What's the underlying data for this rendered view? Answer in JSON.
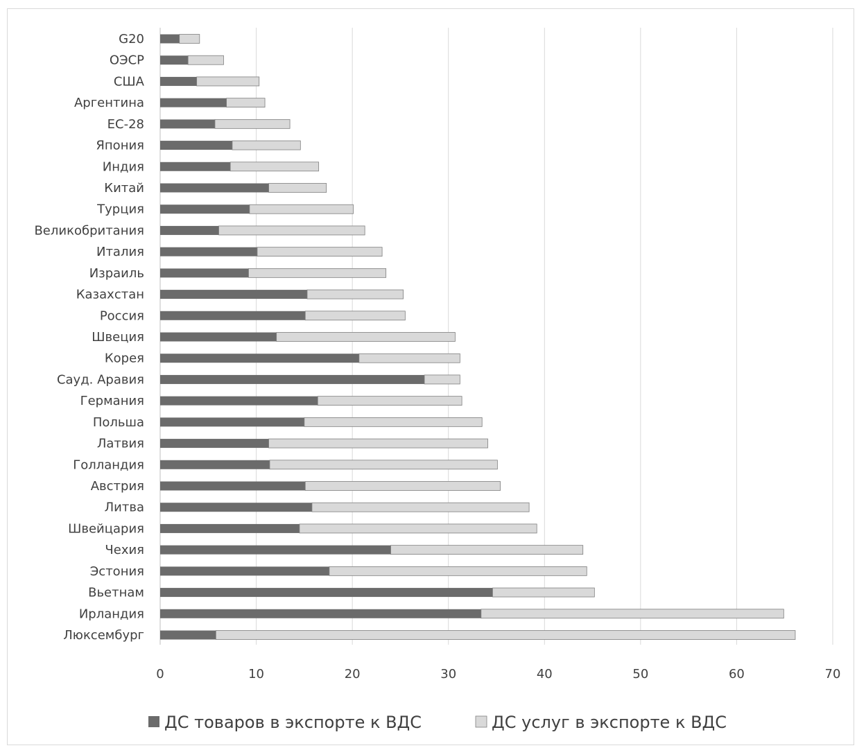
{
  "chart_data": {
    "type": "bar",
    "orientation": "horizontal",
    "stacked": true,
    "categories": [
      "G20",
      "ОЭСР",
      "США",
      "Аргентина",
      "ЕС-28",
      "Япония",
      "Индия",
      "Китай",
      "Турция",
      "Великобритания",
      "Италия",
      "Израиль",
      "Казахстан",
      "Россия",
      "Швеция",
      "Корея",
      "Сауд. Аравия",
      "Германия",
      "Польша",
      "Латвия",
      "Голландия",
      "Австрия",
      "Литва",
      "Швейцария",
      "Чехия",
      "Эстония",
      "Вьетнам",
      "Ирландия",
      "Люксембург"
    ],
    "series": [
      {
        "name": "ДС товаров в экспорте к ВДС",
        "color": "#6b6b6b",
        "values": [
          2.0,
          2.9,
          3.8,
          6.9,
          5.7,
          7.5,
          7.3,
          11.3,
          9.3,
          6.1,
          10.1,
          9.2,
          15.3,
          15.1,
          12.1,
          20.7,
          27.5,
          16.4,
          15.0,
          11.3,
          11.4,
          15.1,
          15.8,
          14.5,
          24.0,
          17.6,
          34.6,
          33.4,
          5.8
        ]
      },
      {
        "name": "ДС услуг в экспорте к ВДС",
        "color": "#d9d9d9",
        "values": [
          2.1,
          3.7,
          6.5,
          4.0,
          7.8,
          7.1,
          9.2,
          6.0,
          10.8,
          15.2,
          13.0,
          14.3,
          10.0,
          10.4,
          18.6,
          10.5,
          3.7,
          15.0,
          18.5,
          22.8,
          23.7,
          20.3,
          22.6,
          24.7,
          20.0,
          26.8,
          10.6,
          31.5,
          60.3
        ]
      }
    ],
    "xlim": [
      0,
      70
    ],
    "xticks": [
      "0",
      "10",
      "20",
      "30",
      "40",
      "50",
      "60",
      "70"
    ],
    "grid": true,
    "legend_position": "bottom",
    "title": "",
    "xlabel": "",
    "ylabel": ""
  }
}
